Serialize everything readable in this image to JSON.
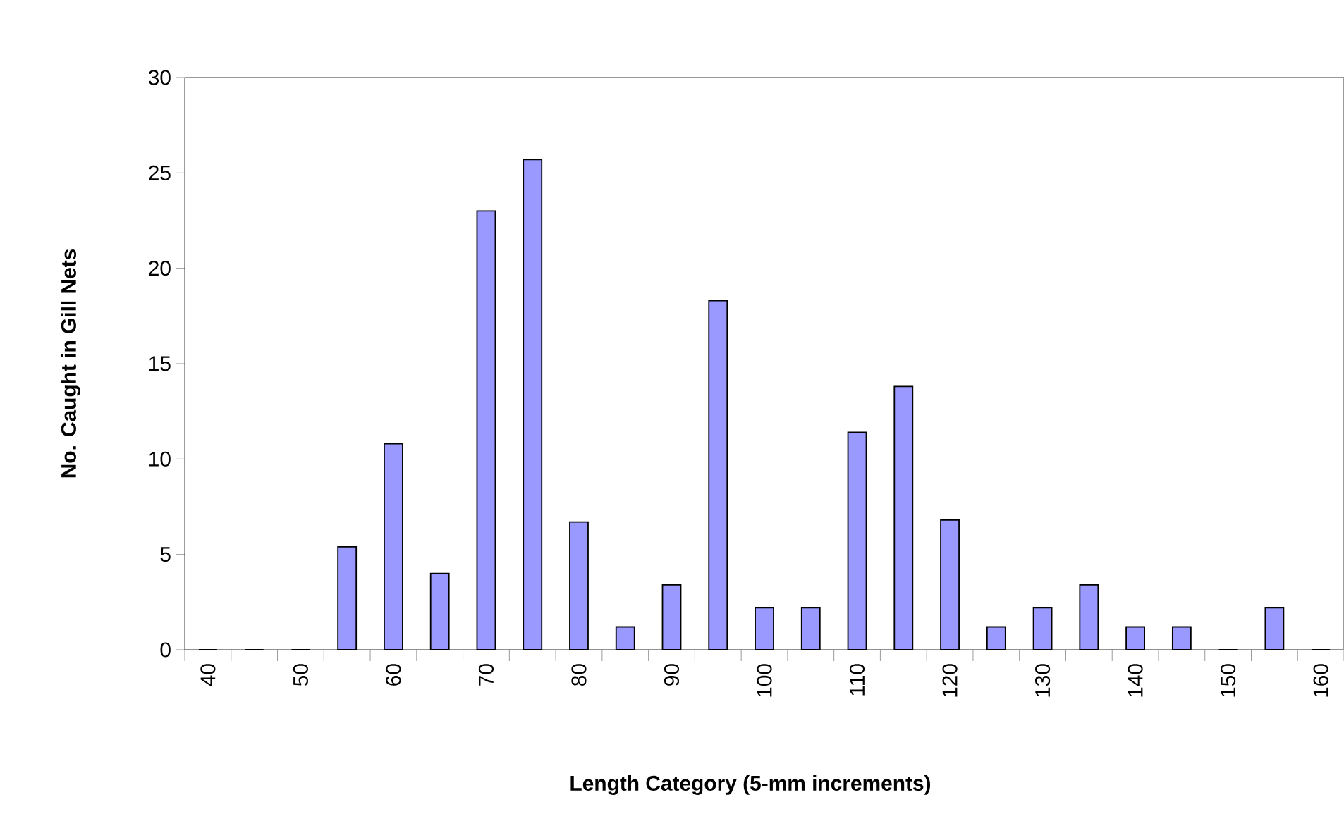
{
  "chart_data": {
    "type": "bar",
    "xlabel": "Length Category (5-mm increments)",
    "ylabel": "No. Caught in Gill Nets",
    "categories": [
      "40",
      null,
      "50",
      null,
      "60",
      null,
      "70",
      null,
      "80",
      null,
      "90",
      null,
      "100",
      null,
      "110",
      null,
      "120",
      null,
      "130",
      null,
      "140",
      null,
      "150",
      null,
      "160"
    ],
    "values": [
      0,
      0,
      0,
      5.4,
      10.8,
      4.0,
      23.0,
      25.7,
      6.7,
      1.2,
      3.4,
      18.3,
      2.2,
      2.2,
      11.4,
      13.8,
      6.8,
      1.2,
      2.2,
      3.4,
      1.2,
      1.2,
      0,
      2.2,
      0
    ],
    "color": "#9999ff",
    "ylim": [
      0,
      30
    ],
    "yticks": [
      0,
      5,
      10,
      15,
      20,
      25,
      30
    ],
    "grid": false
  }
}
